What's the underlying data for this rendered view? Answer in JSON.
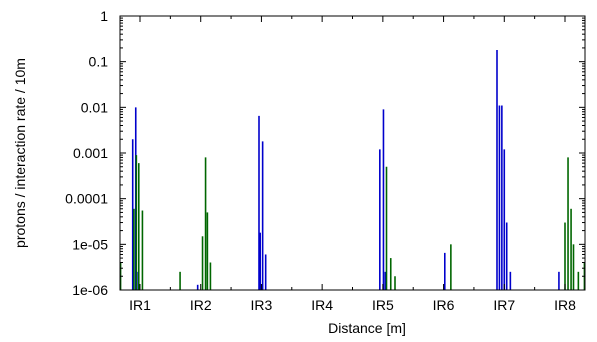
{
  "chart_data": {
    "type": "bar",
    "xlabel": "Distance [m]",
    "ylabel": "protons / interaction rate / 10m",
    "yscale": "log",
    "ylim": [
      1e-06,
      1
    ],
    "y_ticks": [
      "1",
      "0.1",
      "0.01",
      "0.001",
      "0.0001",
      "1e-05",
      "1e-06"
    ],
    "y_tick_values": [
      1,
      0.1,
      0.01,
      0.001,
      0.0001,
      1e-05,
      1e-06
    ],
    "x_ticks": [
      "IR1",
      "IR2",
      "IR3",
      "IR4",
      "IR5",
      "IR6",
      "IR7",
      "IR8"
    ],
    "grid": false,
    "colors": {
      "blue": "#0000cc",
      "green": "#006600"
    },
    "series": [
      {
        "color": "blue",
        "bars": [
          {
            "ir": "IR1",
            "offset": -0.12,
            "value": 0.002
          },
          {
            "ir": "IR1",
            "offset": -0.07,
            "value": 0.01
          },
          {
            "ir": "IR1",
            "offset": -0.03,
            "value": 2.5e-06
          },
          {
            "ir": "IR2",
            "offset": -0.05,
            "value": 1.3e-06
          },
          {
            "ir": "IR3",
            "offset": -0.04,
            "value": 0.0065
          },
          {
            "ir": "IR3",
            "offset": -0.02,
            "value": 1.8e-05
          },
          {
            "ir": "IR3",
            "offset": 0.02,
            "value": 0.0018
          },
          {
            "ir": "IR3",
            "offset": 0.07,
            "value": 6e-06
          },
          {
            "ir": "IR5",
            "offset": -0.05,
            "value": 0.0012
          },
          {
            "ir": "IR5",
            "offset": 0.01,
            "value": 0.009
          },
          {
            "ir": "IR5",
            "offset": 0.04,
            "value": 2.5e-06
          },
          {
            "ir": "IR6",
            "offset": 0.02,
            "value": 6.5e-06
          },
          {
            "ir": "IR7",
            "offset": -0.12,
            "value": 0.18
          },
          {
            "ir": "IR7",
            "offset": -0.08,
            "value": 0.011
          },
          {
            "ir": "IR7",
            "offset": -0.04,
            "value": 0.011
          },
          {
            "ir": "IR7",
            "offset": 0.0,
            "value": 0.0012
          },
          {
            "ir": "IR7",
            "offset": 0.04,
            "value": 3e-05
          },
          {
            "ir": "IR7",
            "offset": 0.1,
            "value": 2.5e-06
          },
          {
            "ir": "IR8",
            "offset": -0.1,
            "value": 2.5e-06
          }
        ]
      },
      {
        "color": "green",
        "bars": [
          {
            "ir": "IR1",
            "offset": -0.32,
            "value": 4e-06
          },
          {
            "ir": "IR1",
            "offset": -0.1,
            "value": 6e-05
          },
          {
            "ir": "IR1",
            "offset": -0.06,
            "value": 0.0009
          },
          {
            "ir": "IR1",
            "offset": -0.02,
            "value": 0.0006
          },
          {
            "ir": "IR1",
            "offset": 0.04,
            "value": 5.5e-05
          },
          {
            "ir": "IR2",
            "offset": -0.34,
            "value": 2.5e-06
          },
          {
            "ir": "IR2",
            "offset": 0.03,
            "value": 1.5e-05
          },
          {
            "ir": "IR2",
            "offset": 0.08,
            "value": 0.0008
          },
          {
            "ir": "IR2",
            "offset": 0.11,
            "value": 5e-05
          },
          {
            "ir": "IR2",
            "offset": 0.16,
            "value": 4e-06
          },
          {
            "ir": "IR5",
            "offset": 0.06,
            "value": 0.0005
          },
          {
            "ir": "IR5",
            "offset": 0.13,
            "value": 5e-06
          },
          {
            "ir": "IR5",
            "offset": 0.2,
            "value": 2e-06
          },
          {
            "ir": "IR6",
            "offset": 0.12,
            "value": 1e-05
          },
          {
            "ir": "IR8",
            "offset": 0.0,
            "value": 3e-05
          },
          {
            "ir": "IR8",
            "offset": 0.05,
            "value": 0.0008
          },
          {
            "ir": "IR8",
            "offset": 0.1,
            "value": 6e-05
          },
          {
            "ir": "IR8",
            "offset": 0.14,
            "value": 1e-05
          },
          {
            "ir": "IR8",
            "offset": 0.22,
            "value": 2.5e-06
          },
          {
            "ir": "IR8",
            "offset": 0.32,
            "value": 4e-06
          }
        ]
      }
    ]
  }
}
